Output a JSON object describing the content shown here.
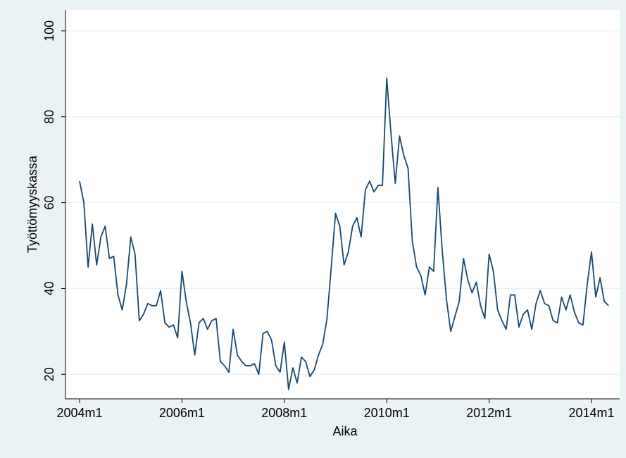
{
  "chart_data": {
    "type": "line",
    "x_label": "Aika",
    "y_label": "Työttömyyskassa",
    "x": [
      "2004m1",
      "2004m2",
      "2004m3",
      "2004m4",
      "2004m5",
      "2004m6",
      "2004m7",
      "2004m8",
      "2004m9",
      "2004m10",
      "2004m11",
      "2004m12",
      "2005m1",
      "2005m2",
      "2005m3",
      "2005m4",
      "2005m5",
      "2005m6",
      "2005m7",
      "2005m8",
      "2005m9",
      "2005m10",
      "2005m11",
      "2005m12",
      "2006m1",
      "2006m2",
      "2006m3",
      "2006m4",
      "2006m5",
      "2006m6",
      "2006m7",
      "2006m8",
      "2006m9",
      "2006m10",
      "2006m11",
      "2006m12",
      "2007m1",
      "2007m2",
      "2007m3",
      "2007m4",
      "2007m5",
      "2007m6",
      "2007m7",
      "2007m8",
      "2007m9",
      "2007m10",
      "2007m11",
      "2007m12",
      "2008m1",
      "2008m2",
      "2008m3",
      "2008m4",
      "2008m5",
      "2008m6",
      "2008m7",
      "2008m8",
      "2008m9",
      "2008m10",
      "2008m11",
      "2008m12",
      "2009m1",
      "2009m2",
      "2009m3",
      "2009m4",
      "2009m5",
      "2009m6",
      "2009m7",
      "2009m8",
      "2009m9",
      "2009m10",
      "2009m11",
      "2009m12",
      "2010m1",
      "2010m2",
      "2010m3",
      "2010m4",
      "2010m5",
      "2010m6",
      "2010m7",
      "2010m8",
      "2010m9",
      "2010m10",
      "2010m11",
      "2010m12",
      "2011m1",
      "2011m2",
      "2011m3",
      "2011m4",
      "2011m5",
      "2011m6",
      "2011m7",
      "2011m8",
      "2011m9",
      "2011m10",
      "2011m11",
      "2011m12",
      "2012m1",
      "2012m2",
      "2012m3",
      "2012m4",
      "2012m5",
      "2012m6",
      "2012m7",
      "2012m8",
      "2012m9",
      "2012m10",
      "2012m11",
      "2012m12",
      "2013m1",
      "2013m2",
      "2013m3",
      "2013m4",
      "2013m5",
      "2013m6",
      "2013m7",
      "2013m8",
      "2013m9",
      "2013m10",
      "2013m11",
      "2013m12",
      "2014m1",
      "2014m2",
      "2014m3",
      "2014m4",
      "2014m5"
    ],
    "series": [
      {
        "color": "#1a476f",
        "values": [
          65,
          60,
          45,
          55,
          45.5,
          52,
          54.5,
          47,
          47.5,
          38.5,
          35,
          41,
          52,
          48,
          32.5,
          34,
          36.5,
          36,
          36,
          39.5,
          32,
          31,
          31.5,
          28.5,
          44,
          37,
          32,
          24.5,
          32,
          33,
          30.5,
          32.5,
          33,
          23,
          22,
          20.5,
          30.5,
          24.5,
          23,
          22,
          22,
          22.5,
          20,
          29.5,
          30,
          28,
          22,
          20.5,
          27.5,
          16.5,
          21.5,
          18,
          24,
          23,
          19.5,
          21,
          24.5,
          27,
          33,
          45,
          57.5,
          54.5,
          45.5,
          48.5,
          54.5,
          56.5,
          52,
          63,
          65,
          62.5,
          64,
          64,
          89,
          76,
          64.5,
          75.5,
          71,
          68,
          51,
          45,
          43,
          38.5,
          45,
          44,
          63.5,
          49,
          37.5,
          30,
          33.5,
          37,
          47,
          42,
          39,
          41.5,
          36,
          33,
          48,
          44,
          35,
          32.5,
          30.5,
          38.5,
          38.5,
          31,
          34,
          35,
          30.5,
          36.5,
          39.5,
          36.5,
          36,
          32.5,
          32,
          38,
          35,
          38.5,
          34.5,
          32,
          31.5,
          41,
          48.5,
          38,
          42.5,
          37,
          36
        ]
      }
    ],
    "xticks": [
      "2004m1",
      "2006m1",
      "2008m1",
      "2010m1",
      "2012m1",
      "2014m1"
    ],
    "ylim": [
      14.3,
      104.9
    ],
    "yticks": [
      20,
      40,
      60,
      80,
      100
    ],
    "grid": true
  }
}
